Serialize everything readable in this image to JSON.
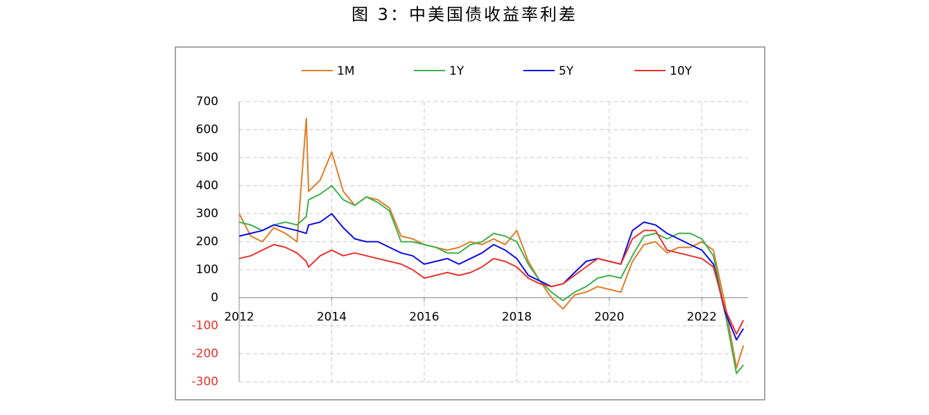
{
  "chart_data": {
    "type": "line",
    "title": "图 3：中美国债收益率利差",
    "x": [
      2012.0,
      2012.25,
      2012.5,
      2012.75,
      2013.0,
      2013.25,
      2013.45,
      2013.5,
      2013.75,
      2014.0,
      2014.25,
      2014.5,
      2014.75,
      2015.0,
      2015.25,
      2015.5,
      2015.75,
      2016.0,
      2016.25,
      2016.5,
      2016.75,
      2017.0,
      2017.25,
      2017.5,
      2017.75,
      2018.0,
      2018.25,
      2018.5,
      2018.75,
      2019.0,
      2019.25,
      2019.5,
      2019.75,
      2020.0,
      2020.25,
      2020.5,
      2020.75,
      2021.0,
      2021.25,
      2021.5,
      2021.75,
      2022.0,
      2022.25,
      2022.5,
      2022.75,
      2022.9
    ],
    "series": [
      {
        "name": "1M",
        "color": "#e07b24",
        "values": [
          300,
          220,
          200,
          250,
          230,
          200,
          640,
          380,
          420,
          520,
          380,
          330,
          360,
          350,
          320,
          220,
          210,
          190,
          180,
          170,
          180,
          200,
          190,
          210,
          190,
          240,
          130,
          60,
          0,
          -40,
          10,
          20,
          40,
          30,
          20,
          130,
          190,
          200,
          160,
          180,
          180,
          200,
          170,
          -20,
          -250,
          -170
        ]
      },
      {
        "name": "1Y",
        "color": "#3cb04a",
        "values": [
          270,
          260,
          240,
          260,
          270,
          260,
          290,
          350,
          370,
          400,
          350,
          330,
          360,
          340,
          310,
          200,
          200,
          190,
          180,
          160,
          160,
          190,
          200,
          230,
          220,
          200,
          120,
          60,
          20,
          -10,
          20,
          40,
          70,
          80,
          70,
          150,
          220,
          230,
          210,
          230,
          230,
          210,
          150,
          -50,
          -270,
          -240
        ]
      },
      {
        "name": "5Y",
        "color": "#0a0ae6",
        "values": [
          220,
          230,
          240,
          260,
          250,
          240,
          230,
          260,
          270,
          300,
          250,
          210,
          200,
          200,
          180,
          160,
          150,
          120,
          130,
          140,
          120,
          140,
          160,
          190,
          170,
          140,
          80,
          60,
          40,
          50,
          90,
          130,
          140,
          130,
          120,
          240,
          270,
          260,
          230,
          210,
          190,
          170,
          120,
          -50,
          -150,
          -110
        ]
      },
      {
        "name": "10Y",
        "color": "#e8312a",
        "values": [
          140,
          150,
          170,
          190,
          180,
          160,
          130,
          110,
          150,
          170,
          150,
          160,
          150,
          140,
          130,
          120,
          100,
          70,
          80,
          90,
          80,
          90,
          110,
          140,
          130,
          110,
          70,
          50,
          40,
          50,
          80,
          110,
          140,
          130,
          120,
          210,
          240,
          240,
          170,
          160,
          150,
          140,
          110,
          -40,
          -130,
          -80
        ]
      }
    ],
    "xlim": [
      2012,
      2023
    ],
    "xticks": [
      2012,
      2014,
      2016,
      2018,
      2020,
      2022
    ],
    "ylim": [
      -300,
      700
    ],
    "yticks": [
      -300,
      -200,
      -100,
      0,
      100,
      200,
      300,
      400,
      500,
      600,
      700
    ],
    "grid": true,
    "legend": "top",
    "negative_tick_color": "#e8312a"
  }
}
